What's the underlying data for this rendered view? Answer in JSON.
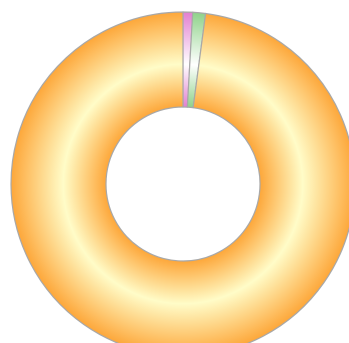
{
  "chart_data": {
    "type": "pie",
    "variant": "donut",
    "start_angle_deg": 0,
    "direction": "clockwise",
    "slices": [
      {
        "value": 0.9,
        "color": "#e27fd0"
      },
      {
        "value": 1.2,
        "color": "#8fd28a"
      },
      {
        "value": 97.9,
        "color": "#fda73a"
      }
    ],
    "gradient": {
      "inner_color": "#fffcc8",
      "outer_color": "#fda73a"
    },
    "stroke_color": "#a8a8a8",
    "legend": "none"
  }
}
